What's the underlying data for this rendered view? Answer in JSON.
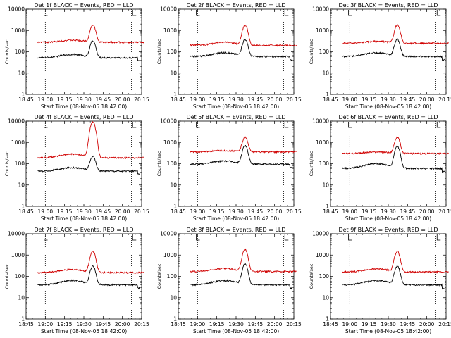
{
  "chart_data": [
    {
      "type": "line",
      "title": "Det 1f BLACK = Events, RED = LLD",
      "xlabel": "Start Time (08-Nov-05 18:42:00)",
      "ylabel": "Counts/sec",
      "y_scale": "log",
      "ylim": [
        1,
        10000
      ],
      "x_ticks": [
        "18:45",
        "19:00",
        "19:15",
        "19:30",
        "19:45",
        "20:00",
        "20:15"
      ],
      "y_ticks": [
        "1",
        "10",
        "100",
        "1000",
        "10000"
      ],
      "vlines": [
        "19:00",
        "20:07"
      ],
      "series": [
        {
          "color": "#d00000",
          "base": 280,
          "hill": 1.25,
          "peak": 1800
        },
        {
          "color": "#000000",
          "base": 52,
          "hill": 1.45,
          "peak": 320
        }
      ]
    },
    {
      "type": "line",
      "title": "Det 2f BLACK = Events, RED = LLD",
      "xlabel": "Start Time (08-Nov-05 18:42:00)",
      "ylabel": "Counts/sec",
      "y_scale": "log",
      "ylim": [
        1,
        10000
      ],
      "x_ticks": [
        "18:45",
        "19:00",
        "19:15",
        "19:30",
        "19:45",
        "20:00",
        "20:15"
      ],
      "y_ticks": [
        "1",
        "10",
        "100",
        "1000",
        "10000"
      ],
      "vlines": [
        "19:00",
        "20:07"
      ],
      "series": [
        {
          "color": "#d00000",
          "base": 200,
          "hill": 1.4,
          "peak": 1800
        },
        {
          "color": "#000000",
          "base": 60,
          "hill": 1.5,
          "peak": 380
        }
      ]
    },
    {
      "type": "line",
      "title": "Det 3f BLACK = Events, RED = LLD",
      "xlabel": "Start Time (08-Nov-05 18:42:00)",
      "ylabel": "Counts/sec",
      "y_scale": "log",
      "ylim": [
        1,
        10000
      ],
      "x_ticks": [
        "18:45",
        "19:00",
        "19:15",
        "19:30",
        "19:45",
        "20:00",
        "20:15"
      ],
      "y_ticks": [
        "1",
        "10",
        "100",
        "1000",
        "10000"
      ],
      "vlines": [
        "19:00",
        "20:07"
      ],
      "series": [
        {
          "color": "#d00000",
          "base": 250,
          "hill": 1.25,
          "peak": 1800
        },
        {
          "color": "#000000",
          "base": 60,
          "hill": 1.5,
          "peak": 380
        }
      ]
    },
    {
      "type": "line",
      "title": "Det 4f BLACK = Events, RED = LLD",
      "xlabel": "Start Time (08-Nov-05 18:42:00)",
      "ylabel": "Counts/sec",
      "y_scale": "log",
      "ylim": [
        1,
        10000
      ],
      "x_ticks": [
        "18:45",
        "19:00",
        "19:15",
        "19:30",
        "19:45",
        "20:00",
        "20:15"
      ],
      "y_ticks": [
        "1",
        "10",
        "100",
        "1000",
        "10000"
      ],
      "vlines": [
        "19:00",
        "20:07"
      ],
      "series": [
        {
          "color": "#d00000",
          "base": 190,
          "hill": 1.5,
          "peak": 9000
        },
        {
          "color": "#000000",
          "base": 45,
          "hill": 1.45,
          "peak": 220
        }
      ]
    },
    {
      "type": "line",
      "title": "Det 5f BLACK = Events, RED = LLD",
      "xlabel": "Start Time (08-Nov-05 18:42:00)",
      "ylabel": "Counts/sec",
      "y_scale": "log",
      "ylim": [
        1,
        10000
      ],
      "x_ticks": [
        "18:45",
        "19:00",
        "19:15",
        "19:30",
        "19:45",
        "20:00",
        "20:15"
      ],
      "y_ticks": [
        "1",
        "10",
        "100",
        "1000",
        "10000"
      ],
      "vlines": [
        "19:00",
        "20:07"
      ],
      "series": [
        {
          "color": "#d00000",
          "base": 360,
          "hill": 1.15,
          "peak": 1800
        },
        {
          "color": "#000000",
          "base": 95,
          "hill": 1.4,
          "peak": 700
        }
      ]
    },
    {
      "type": "line",
      "title": "Det 6f BLACK = Events, RED = LLD",
      "xlabel": "Start Time (08-Nov-05 18:42:00)",
      "ylabel": "Counts/sec",
      "y_scale": "log",
      "ylim": [
        1,
        10000
      ],
      "x_ticks": [
        "18:45",
        "19:00",
        "19:15",
        "19:30",
        "19:45",
        "20:00",
        "20:15"
      ],
      "y_ticks": [
        "1",
        "10",
        "100",
        "1000",
        "10000"
      ],
      "vlines": [
        "19:00",
        "20:07"
      ],
      "series": [
        {
          "color": "#d00000",
          "base": 300,
          "hill": 1.2,
          "peak": 1800
        },
        {
          "color": "#000000",
          "base": 60,
          "hill": 1.7,
          "peak": 650
        }
      ]
    },
    {
      "type": "line",
      "title": "Det 7f BLACK = Events, RED = LLD",
      "xlabel": "Start Time (08-Nov-05 18:42:00)",
      "ylabel": "Counts/sec",
      "y_scale": "log",
      "ylim": [
        1,
        10000
      ],
      "x_ticks": [
        "18:45",
        "19:00",
        "19:15",
        "19:30",
        "19:45",
        "20:00",
        "20:15"
      ],
      "y_ticks": [
        "1",
        "10",
        "100",
        "1000",
        "10000"
      ],
      "vlines": [
        "19:00",
        "20:07"
      ],
      "series": [
        {
          "color": "#d00000",
          "base": 150,
          "hill": 1.4,
          "peak": 1500
        },
        {
          "color": "#000000",
          "base": 40,
          "hill": 1.6,
          "peak": 300
        }
      ]
    },
    {
      "type": "line",
      "title": "Det 8f BLACK = Events, RED = LLD",
      "xlabel": "Start Time (08-Nov-05 18:42:00)",
      "ylabel": "Counts/sec",
      "y_scale": "log",
      "ylim": [
        1,
        10000
      ],
      "x_ticks": [
        "18:45",
        "19:00",
        "19:15",
        "19:30",
        "19:45",
        "20:00",
        "20:15"
      ],
      "y_ticks": [
        "1",
        "10",
        "100",
        "1000",
        "10000"
      ],
      "vlines": [
        "19:00",
        "20:07"
      ],
      "series": [
        {
          "color": "#d00000",
          "base": 170,
          "hill": 1.4,
          "peak": 1800
        },
        {
          "color": "#000000",
          "base": 40,
          "hill": 1.6,
          "peak": 380
        }
      ]
    },
    {
      "type": "line",
      "title": "Det 9f BLACK = Events, RED = LLD",
      "xlabel": "Start Time (08-Nov-05 18:42:00)",
      "ylabel": "Counts/sec",
      "y_scale": "log",
      "ylim": [
        1,
        10000
      ],
      "x_ticks": [
        "18:45",
        "19:00",
        "19:15",
        "19:30",
        "19:45",
        "20:00",
        "20:15"
      ],
      "y_ticks": [
        "1",
        "10",
        "100",
        "1000",
        "10000"
      ],
      "vlines": [
        "19:00",
        "20:07"
      ],
      "series": [
        {
          "color": "#d00000",
          "base": 160,
          "hill": 1.4,
          "peak": 1500
        },
        {
          "color": "#000000",
          "base": 40,
          "hill": 1.6,
          "peak": 300
        }
      ]
    }
  ]
}
